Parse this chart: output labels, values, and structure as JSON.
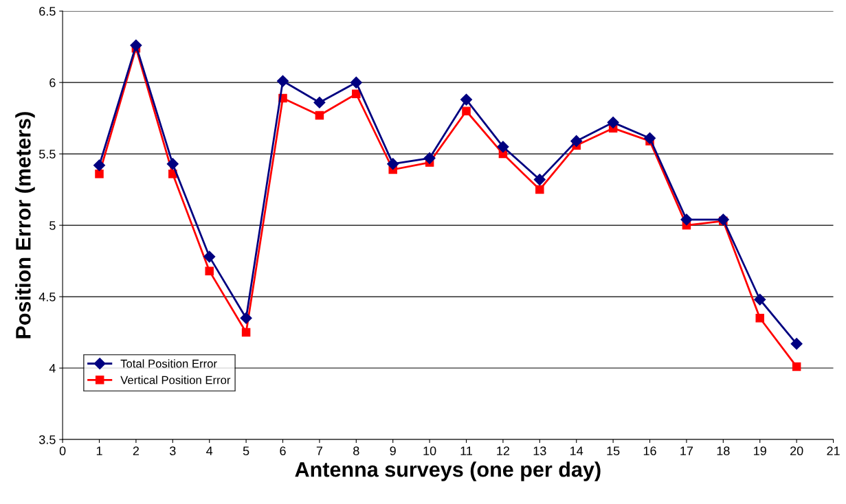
{
  "chart_data": {
    "type": "line",
    "xlabel": "Antenna surveys (one per day)",
    "ylabel": "Position Error (meters)",
    "x": [
      1,
      2,
      3,
      4,
      5,
      6,
      7,
      8,
      9,
      10,
      11,
      12,
      13,
      14,
      15,
      16,
      17,
      18,
      19,
      20
    ],
    "series": [
      {
        "name": "Total Position Error",
        "color": "#000080",
        "marker": "diamond",
        "values": [
          5.42,
          6.26,
          5.43,
          4.78,
          4.35,
          6.01,
          5.86,
          6.0,
          5.43,
          5.47,
          5.88,
          5.55,
          5.32,
          5.59,
          5.72,
          5.61,
          5.04,
          5.04,
          4.48,
          4.17
        ]
      },
      {
        "name": "Vertical Position Error",
        "color": "#ff0000",
        "marker": "square",
        "values": [
          5.36,
          6.24,
          5.36,
          4.68,
          4.25,
          5.89,
          5.77,
          5.92,
          5.39,
          5.44,
          5.8,
          5.5,
          5.25,
          5.56,
          5.68,
          5.59,
          5.0,
          5.03,
          4.35,
          4.01
        ]
      }
    ],
    "xlim": [
      0,
      21
    ],
    "xticks": [
      0,
      1,
      2,
      3,
      4,
      5,
      6,
      7,
      8,
      9,
      10,
      11,
      12,
      13,
      14,
      15,
      16,
      17,
      18,
      19,
      20,
      21
    ],
    "ylim": [
      3.5,
      6.5
    ],
    "yticks": [
      3.5,
      4,
      4.5,
      5,
      5.5,
      6,
      6.5
    ],
    "grid": "y",
    "legend": "lower left",
    "line_style": "solid"
  }
}
